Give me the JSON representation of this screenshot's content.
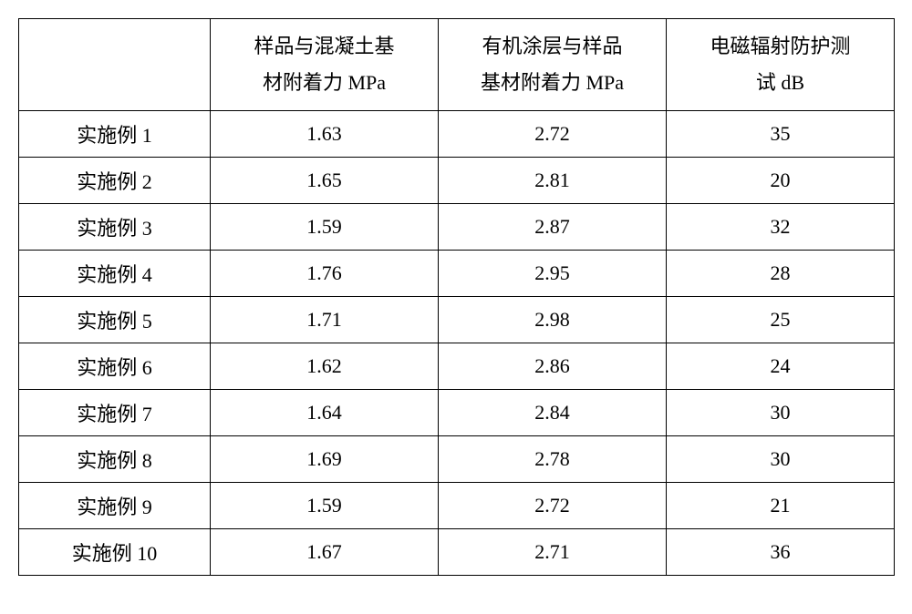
{
  "table": {
    "headers": {
      "blank": "",
      "col1_line1": "样品与混凝土基",
      "col1_line2": "材附着力 MPa",
      "col2_line1": "有机涂层与样品",
      "col2_line2": "基材附着力 MPa",
      "col3_line1": "电磁辐射防护测",
      "col3_line2": "试 dB"
    },
    "rows": [
      {
        "label": "实施例 1",
        "v1": "1.63",
        "v2": "2.72",
        "v3": "35"
      },
      {
        "label": "实施例 2",
        "v1": "1.65",
        "v2": "2.81",
        "v3": "20"
      },
      {
        "label": "实施例 3",
        "v1": "1.59",
        "v2": "2.87",
        "v3": "32"
      },
      {
        "label": "实施例 4",
        "v1": "1.76",
        "v2": "2.95",
        "v3": "28"
      },
      {
        "label": "实施例 5",
        "v1": "1.71",
        "v2": "2.98",
        "v3": "25"
      },
      {
        "label": "实施例 6",
        "v1": "1.62",
        "v2": "2.86",
        "v3": "24"
      },
      {
        "label": "实施例 7",
        "v1": "1.64",
        "v2": "2.84",
        "v3": "30"
      },
      {
        "label": "实施例 8",
        "v1": "1.69",
        "v2": "2.78",
        "v3": "30"
      },
      {
        "label": "实施例 9",
        "v1": "1.59",
        "v2": "2.72",
        "v3": "21"
      },
      {
        "label": "实施例 10",
        "v1": "1.67",
        "v2": "2.71",
        "v3": "36"
      }
    ]
  }
}
